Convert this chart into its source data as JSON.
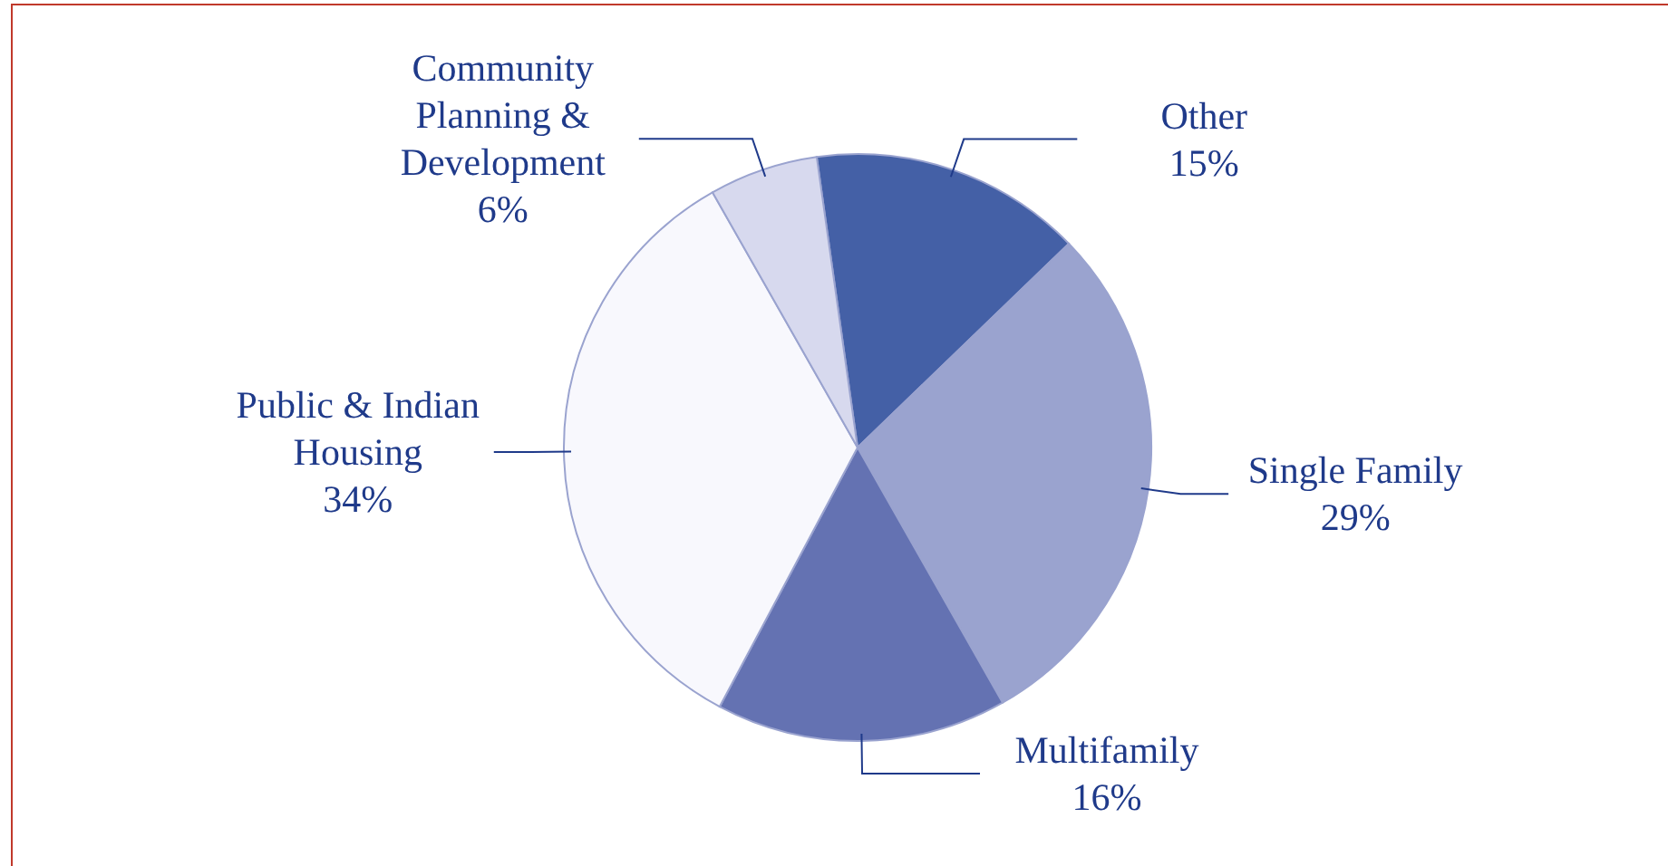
{
  "chart_data": {
    "type": "pie",
    "categories": [
      "Other",
      "Single Family",
      "Multifamily",
      "Public & Indian Housing",
      "Community Planning & Development"
    ],
    "values": [
      15,
      29,
      16,
      34,
      6
    ],
    "value_labels": [
      "15%",
      "29%",
      "16%",
      "34%",
      "6%"
    ],
    "colors": [
      "#4460a6",
      "#9aa3cf",
      "#6472b2",
      "#f8f8fd",
      "#d7d9ee"
    ]
  }
}
